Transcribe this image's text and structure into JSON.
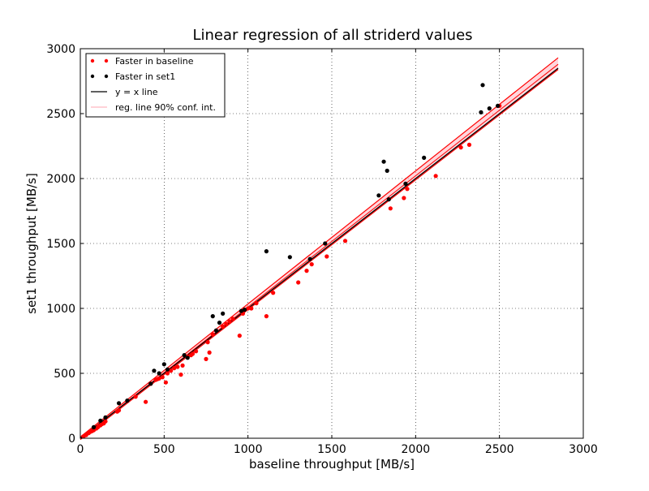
{
  "chart_data": {
    "type": "scatter",
    "title": "Linear regression of all striderd values",
    "xlabel": "baseline throughput [MB/s]",
    "ylabel": "set1 throughput [MB/s]",
    "xlim": [
      0,
      3000
    ],
    "ylim": [
      0,
      3000
    ],
    "xticks": [
      "0",
      "500",
      "1000",
      "1500",
      "2000",
      "2500",
      "3000"
    ],
    "yticks": [
      "0",
      "500",
      "1000",
      "1500",
      "2000",
      "2500",
      "3000"
    ],
    "grid": true,
    "legend_position": "top-left",
    "legend": [
      {
        "label": "Faster in baseline",
        "kind": "points",
        "color": "#ff0000"
      },
      {
        "label": "Faster in set1",
        "kind": "points",
        "color": "#000000"
      },
      {
        "label": "y = x line",
        "kind": "line",
        "color": "#000000"
      },
      {
        "label": "reg. line 90% conf. int.",
        "kind": "line",
        "color": "#ffb6c1"
      }
    ],
    "series": [
      {
        "name": "Faster in baseline",
        "color": "#ff0000",
        "points": [
          [
            20,
            15
          ],
          [
            35,
            25
          ],
          [
            50,
            40
          ],
          [
            60,
            50
          ],
          [
            70,
            55
          ],
          [
            80,
            62
          ],
          [
            95,
            75
          ],
          [
            105,
            85
          ],
          [
            110,
            95
          ],
          [
            120,
            100
          ],
          [
            130,
            110
          ],
          [
            140,
            115
          ],
          [
            150,
            130
          ],
          [
            220,
            205
          ],
          [
            230,
            215
          ],
          [
            330,
            320
          ],
          [
            390,
            280
          ],
          [
            420,
            420
          ],
          [
            450,
            450
          ],
          [
            460,
            455
          ],
          [
            470,
            460
          ],
          [
            490,
            470
          ],
          [
            510,
            430
          ],
          [
            520,
            500
          ],
          [
            540,
            520
          ],
          [
            560,
            540
          ],
          [
            580,
            550
          ],
          [
            600,
            490
          ],
          [
            610,
            560
          ],
          [
            640,
            630
          ],
          [
            660,
            640
          ],
          [
            670,
            650
          ],
          [
            690,
            670
          ],
          [
            750,
            610
          ],
          [
            760,
            740
          ],
          [
            770,
            660
          ],
          [
            790,
            800
          ],
          [
            850,
            860
          ],
          [
            870,
            880
          ],
          [
            890,
            900
          ],
          [
            910,
            920
          ],
          [
            950,
            790
          ],
          [
            970,
            960
          ],
          [
            1000,
            1000
          ],
          [
            1020,
            1000
          ],
          [
            1050,
            1040
          ],
          [
            1110,
            940
          ],
          [
            1150,
            1120
          ],
          [
            1300,
            1200
          ],
          [
            1350,
            1290
          ],
          [
            1380,
            1340
          ],
          [
            1470,
            1400
          ],
          [
            1580,
            1520
          ],
          [
            1850,
            1770
          ],
          [
            1930,
            1850
          ],
          [
            1950,
            1920
          ],
          [
            2120,
            2020
          ],
          [
            2270,
            2240
          ],
          [
            2320,
            2260
          ],
          [
            2500,
            2560
          ]
        ]
      },
      {
        "name": "Faster in set1",
        "color": "#000000",
        "points": [
          [
            80,
            85
          ],
          [
            120,
            135
          ],
          [
            150,
            160
          ],
          [
            230,
            270
          ],
          [
            280,
            290
          ],
          [
            420,
            420
          ],
          [
            440,
            520
          ],
          [
            470,
            500
          ],
          [
            500,
            570
          ],
          [
            520,
            530
          ],
          [
            620,
            640
          ],
          [
            640,
            620
          ],
          [
            790,
            940
          ],
          [
            810,
            830
          ],
          [
            830,
            890
          ],
          [
            850,
            960
          ],
          [
            960,
            980
          ],
          [
            980,
            990
          ],
          [
            1110,
            1440
          ],
          [
            1250,
            1395
          ],
          [
            1370,
            1380
          ],
          [
            1460,
            1500
          ],
          [
            1780,
            1870
          ],
          [
            1810,
            2130
          ],
          [
            1830,
            2060
          ],
          [
            1840,
            1840
          ],
          [
            1940,
            1960
          ],
          [
            2050,
            2160
          ],
          [
            2390,
            2510
          ],
          [
            2400,
            2720
          ],
          [
            2440,
            2540
          ],
          [
            2490,
            2560
          ]
        ]
      }
    ],
    "reference_line": {
      "name": "y = x line",
      "x": [
        0,
        2850
      ],
      "y": [
        0,
        2850
      ]
    },
    "regression_line": {
      "x": [
        0,
        2850
      ],
      "y": [
        0,
        2880
      ]
    },
    "confidence_band_90": {
      "x": [
        0,
        2850
      ],
      "lower": [
        -10,
        2840
      ],
      "upper": [
        10,
        2930
      ]
    }
  }
}
